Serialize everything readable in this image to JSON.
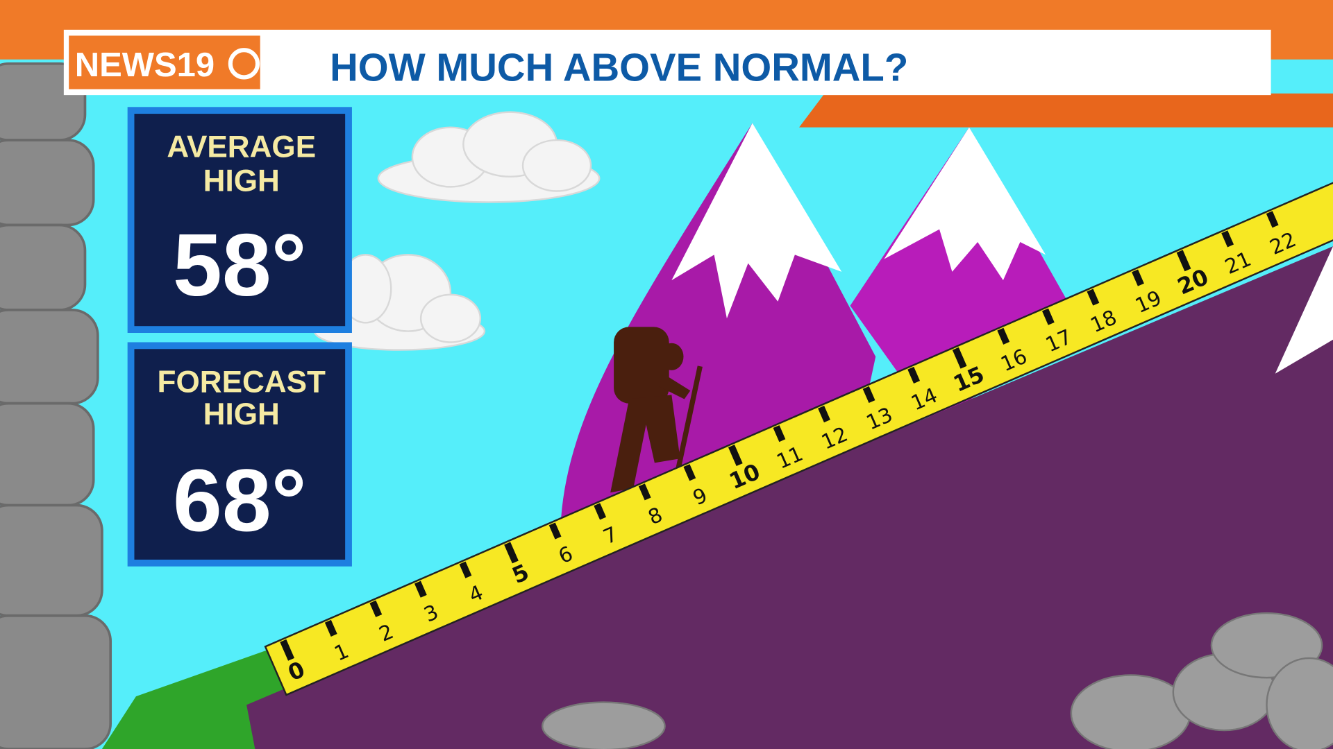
{
  "header": {
    "logo": "NEWS19",
    "title": "HOW MUCH ABOVE NORMAL?"
  },
  "cards": [
    {
      "label_lines": [
        "AVERAGE",
        "HIGH"
      ],
      "value": "58°"
    },
    {
      "label_lines": [
        "FORECAST",
        "HIGH"
      ],
      "value": "68°"
    }
  ],
  "ruler": {
    "labels": [
      0,
      1,
      2,
      3,
      4,
      5,
      6,
      7,
      8,
      9,
      10,
      11,
      12,
      13,
      14,
      15,
      16,
      17,
      18,
      19,
      20,
      21,
      22
    ]
  }
}
